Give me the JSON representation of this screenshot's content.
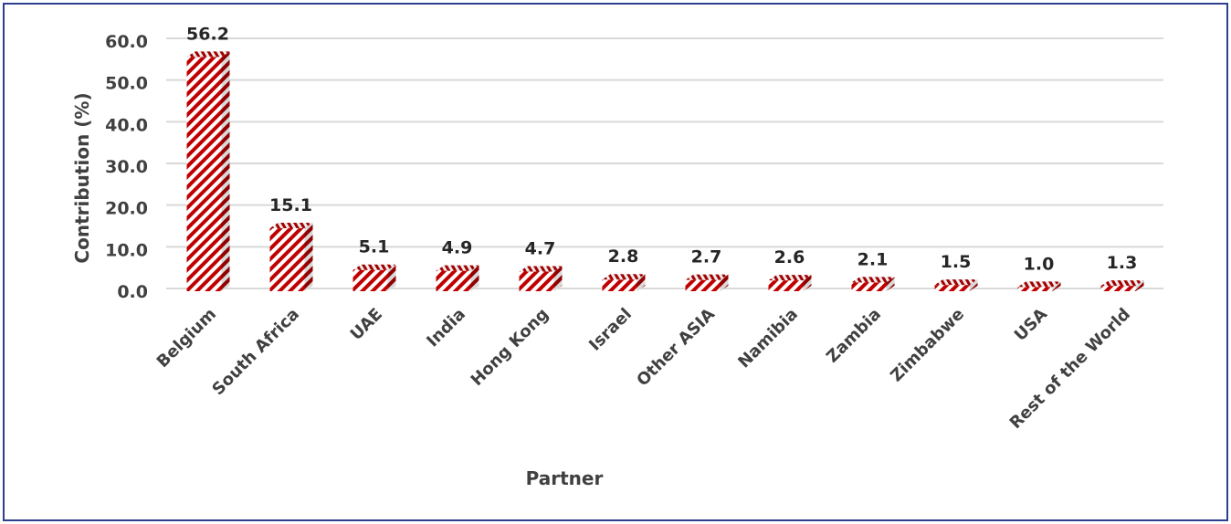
{
  "chart_data": {
    "type": "bar",
    "title": "",
    "xlabel": "Partner",
    "ylabel": "Contribution (%)",
    "ylim": [
      0,
      60
    ],
    "yticks": [
      0,
      10,
      20,
      30,
      40,
      50,
      60
    ],
    "ytick_labels": [
      "0.0",
      "10.0",
      "20.0",
      "30.0",
      "40.0",
      "50.0",
      "60.0"
    ],
    "grid": true,
    "categories": [
      "Belgium",
      "South Africa",
      "UAE",
      "India",
      "Hong Kong",
      "Israel",
      "Other ASIA",
      "Namibia",
      "Zambia",
      "Zimbabwe",
      "USA",
      "Rest of the World"
    ],
    "values": [
      56.2,
      15.1,
      5.1,
      4.9,
      4.7,
      2.8,
      2.7,
      2.6,
      2.1,
      1.5,
      1.0,
      1.3
    ],
    "data_labels": [
      "56.2",
      "15.1",
      "5.1",
      "4.9",
      "4.7",
      "2.8",
      "2.7",
      "2.6",
      "2.1",
      "1.5",
      "1.0",
      "1.3"
    ],
    "bar_color": "#c00000",
    "bar_pattern": "diagonal-stripes",
    "border_color": "#2e3f8f"
  }
}
